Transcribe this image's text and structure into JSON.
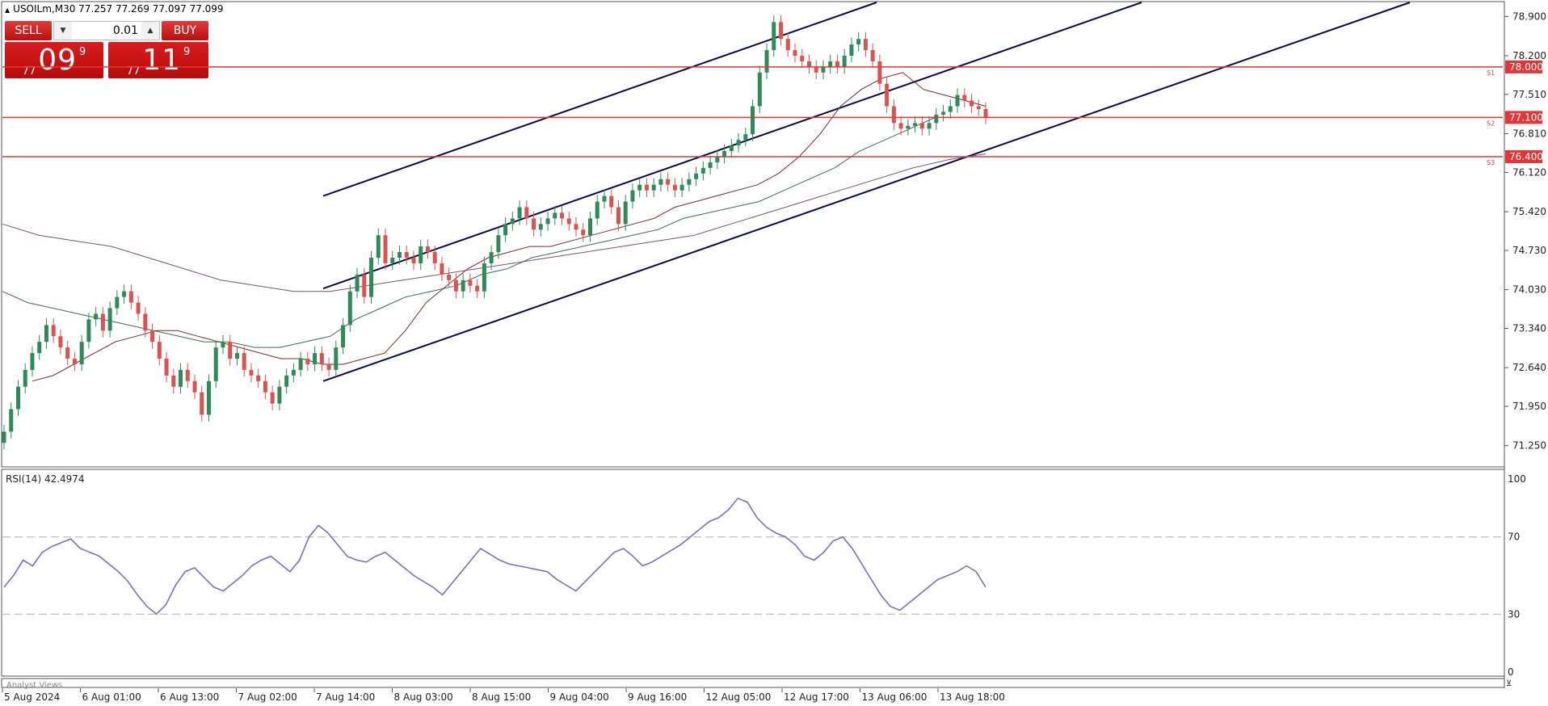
{
  "header": {
    "collapse_icon": "triangle-up-icon",
    "symbol_line": "USOILm,M30  77.257 77.269 77.097 77.099"
  },
  "trade_panel": {
    "sell_label": "SELL",
    "buy_label": "BUY",
    "lot_value": "0.01",
    "sell_price": {
      "prefix": "77",
      "main": "09",
      "sup": "9"
    },
    "buy_price": {
      "prefix": "77",
      "main": "11",
      "sup": "9"
    }
  },
  "chart_data": [
    {
      "type": "candlestick",
      "symbol": "USOILm",
      "timeframe": "M30",
      "ohlc_last": {
        "open": 77.257,
        "high": 77.269,
        "low": 77.097,
        "close": 77.099
      },
      "y_ticks": [
        "78.900",
        "78.200",
        "77.510",
        "76.810",
        "76.120",
        "75.420",
        "74.730",
        "74.030",
        "73.340",
        "72.640",
        "71.950",
        "71.250"
      ],
      "ylim": [
        70.9,
        79.15
      ],
      "x_ticks": [
        "5 Aug 2024",
        "6 Aug 01:00",
        "6 Aug 13:00",
        "7 Aug 02:00",
        "7 Aug 14:00",
        "8 Aug 03:00",
        "8 Aug 15:00",
        "9 Aug 04:00",
        "9 Aug 16:00",
        "12 Aug 05:00",
        "12 Aug 17:00",
        "13 Aug 06:00",
        "13 Aug 18:00"
      ],
      "closes": [
        71.5,
        71.9,
        72.3,
        72.6,
        72.9,
        73.1,
        73.4,
        73.2,
        73.0,
        72.8,
        72.7,
        73.1,
        73.5,
        73.6,
        73.3,
        73.7,
        73.9,
        74.0,
        73.8,
        73.6,
        73.3,
        73.1,
        72.8,
        72.5,
        72.3,
        72.6,
        72.4,
        72.2,
        71.8,
        72.4,
        73.0,
        73.1,
        72.8,
        72.9,
        72.6,
        72.5,
        72.4,
        72.2,
        72.0,
        72.3,
        72.5,
        72.6,
        72.8,
        72.7,
        72.9,
        72.7,
        72.6,
        73.0,
        73.4,
        74.0,
        74.3,
        73.9,
        74.6,
        75.0,
        74.5,
        74.6,
        74.7,
        74.6,
        74.5,
        74.8,
        74.7,
        74.5,
        74.3,
        74.2,
        74.0,
        74.2,
        74.1,
        74.0,
        74.5,
        74.7,
        75.0,
        75.2,
        75.3,
        75.5,
        75.3,
        75.1,
        75.2,
        75.3,
        75.4,
        75.3,
        75.2,
        75.1,
        75.0,
        75.3,
        75.6,
        75.7,
        75.5,
        75.2,
        75.6,
        75.8,
        75.9,
        75.8,
        75.9,
        76.0,
        75.9,
        75.8,
        75.9,
        76.0,
        76.1,
        76.2,
        76.3,
        76.4,
        76.5,
        76.6,
        76.7,
        76.8,
        77.3,
        77.9,
        78.3,
        78.8,
        78.5,
        78.3,
        78.2,
        78.1,
        78.0,
        77.9,
        78.0,
        78.1,
        78.0,
        78.2,
        78.4,
        78.5,
        78.3,
        78.1,
        77.7,
        77.3,
        77.0,
        76.9,
        76.95,
        77.0,
        76.9,
        77.0,
        77.15,
        77.2,
        77.3,
        77.5,
        77.4,
        77.3,
        77.25,
        77.1
      ],
      "sma_fast": [
        72.4,
        72.5,
        72.7,
        72.9,
        73.1,
        73.2,
        73.3,
        73.3,
        73.2,
        73.1,
        73.0,
        72.9,
        72.8,
        72.8,
        72.7,
        72.7,
        72.8,
        72.9,
        73.3,
        73.8,
        74.1,
        74.4,
        74.6,
        74.7,
        74.8,
        74.8,
        74.9,
        75.0,
        75.1,
        75.2,
        75.3,
        75.5,
        75.6,
        75.7,
        75.8,
        75.9,
        76.1,
        76.4,
        76.8,
        77.3,
        77.6,
        77.8,
        77.9,
        77.6,
        77.5,
        77.4,
        77.3
      ],
      "sma_mid": [
        74.0,
        73.8,
        73.7,
        73.6,
        73.5,
        73.4,
        73.3,
        73.2,
        73.1,
        73.1,
        73.0,
        73.0,
        73.1,
        73.2,
        73.5,
        73.7,
        73.9,
        74.0,
        74.1,
        74.3,
        74.4,
        74.6,
        74.7,
        74.8,
        74.9,
        75.0,
        75.1,
        75.3,
        75.4,
        75.5,
        75.6,
        75.8,
        76.0,
        76.2,
        76.5,
        76.7,
        76.9,
        77.1,
        77.1,
        77.1
      ],
      "sma_slow": [
        75.2,
        75.0,
        74.9,
        74.8,
        74.6,
        74.4,
        74.2,
        74.1,
        74.0,
        74.0,
        74.1,
        74.2,
        74.3,
        74.4,
        74.5,
        74.6,
        74.7,
        74.8,
        74.9,
        75.0,
        75.2,
        75.4,
        75.6,
        75.8,
        76.0,
        76.2,
        76.35,
        76.45
      ],
      "horizontal_levels": [
        {
          "price": 78.0,
          "label": "78.000",
          "tag": "S1"
        },
        {
          "price": 77.1,
          "label": "77.100",
          "tag": "S2"
        },
        {
          "price": 76.4,
          "label": "76.400",
          "tag": "S3"
        }
      ],
      "channel_lines": [
        {
          "from": [
            "7 Aug 14:00",
            75.7
          ],
          "to": [
            "12 Aug 23:00",
            79.15
          ]
        },
        {
          "from": [
            "7 Aug 14:00",
            74.05
          ],
          "to": [
            "13 Aug 18:00",
            79.15
          ]
        },
        {
          "from": [
            "7 Aug 14:00",
            72.4
          ],
          "to": [
            "14 Aug 12:00",
            79.15
          ]
        }
      ]
    },
    {
      "type": "line",
      "title": "RSI(14) 42.4974",
      "y_ticks": [
        "100",
        "70",
        "30",
        "0"
      ],
      "ylim": [
        0,
        100
      ],
      "reference_lines": [
        70,
        30
      ],
      "values": [
        44,
        50,
        58,
        55,
        62,
        65,
        67,
        69,
        64,
        62,
        60,
        56,
        52,
        47,
        40,
        34,
        30,
        35,
        45,
        52,
        54,
        49,
        44,
        42,
        46,
        50,
        55,
        58,
        60,
        56,
        52,
        58,
        70,
        76,
        72,
        66,
        60,
        58,
        57,
        60,
        62,
        58,
        54,
        50,
        47,
        44,
        40,
        46,
        52,
        58,
        64,
        61,
        58,
        56,
        55,
        54,
        53,
        52,
        48,
        45,
        42,
        47,
        52,
        57,
        62,
        64,
        60,
        55,
        57,
        60,
        63,
        66,
        70,
        74,
        78,
        80,
        84,
        90,
        88,
        80,
        75,
        72,
        70,
        66,
        60,
        58,
        62,
        68,
        70,
        64,
        56,
        48,
        40,
        34,
        32,
        36,
        40,
        44,
        48,
        50,
        52,
        55,
        52,
        44
      ]
    }
  ],
  "bottom_panel": {
    "label": "Analyst Views"
  },
  "colors": {
    "bull": "#2e8b57",
    "bear": "#d9534f",
    "level": "#e23636",
    "channel": "#0a0a4a",
    "rsi": "#7b6fc3"
  }
}
